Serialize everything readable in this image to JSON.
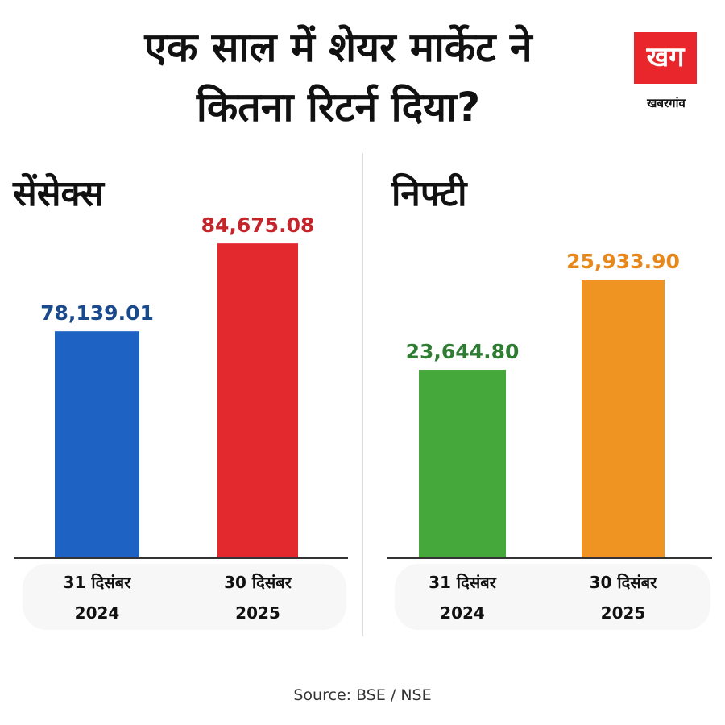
{
  "title_line1": "एक साल में शेयर मार्केट ने",
  "title_line2": "कितना रिटर्न दिया?",
  "logo": {
    "mark": "खग",
    "text": "खबरगांव"
  },
  "source": "Source: BSE / NSE",
  "chart_data": [
    {
      "type": "bar",
      "title": "सेंसेक्स",
      "categories": [
        [
          "31 दिसंबर",
          "2024"
        ],
        [
          "30 दिसंबर",
          "2025"
        ]
      ],
      "values": [
        78139.01,
        84675.08
      ],
      "labels": [
        "78,139.01",
        "84,675.08"
      ],
      "colors": [
        "#1e63c4",
        "#e3292e"
      ],
      "label_colors": [
        "#1b4a8c",
        "#c4252a"
      ],
      "ylim": [
        61240,
        90800
      ]
    },
    {
      "type": "bar",
      "title": "निफ्टी",
      "categories": [
        [
          "31 दिसंबर",
          "2024"
        ],
        [
          "30 दिसंबर",
          "2025"
        ]
      ],
      "values": [
        23644.8,
        25933.9
      ],
      "labels": [
        "23,644.80",
        "25,933.90"
      ],
      "colors": [
        "#45a83a",
        "#ef9322"
      ],
      "label_colors": [
        "#2e7d32",
        "#e8871a"
      ],
      "ylim": [
        18860,
        28940
      ]
    }
  ]
}
